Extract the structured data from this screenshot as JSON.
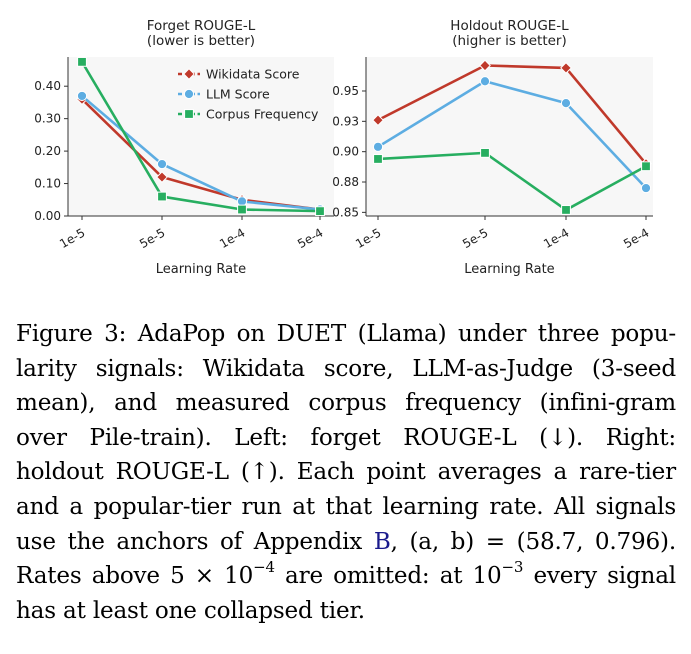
{
  "colors": {
    "wikidata": "#c0392b",
    "llm": "#5dade2",
    "corpus": "#27ae60",
    "panel_bg": "#f7f7f7"
  },
  "chart_data": [
    {
      "type": "line",
      "title": "Forget ROUGE-L",
      "subtitle": "(lower is better)",
      "xlabel": "Learning Rate",
      "ylabel": "",
      "categories": [
        "1e-5",
        "5e-5",
        "1e-4",
        "5e-4"
      ],
      "yticks": [
        "0.00",
        "0.10",
        "0.20",
        "0.30",
        "0.40"
      ],
      "ylim": [
        0.0,
        0.49
      ],
      "legend": "top-right",
      "grid": false,
      "series": [
        {
          "name": "Wikidata Score",
          "marker": "diamond",
          "values": [
            0.36,
            0.12,
            0.05,
            0.02
          ]
        },
        {
          "name": "LLM Score",
          "marker": "circle",
          "values": [
            0.37,
            0.16,
            0.045,
            0.02
          ]
        },
        {
          "name": "Corpus Frequency",
          "marker": "square",
          "values": [
            0.475,
            0.06,
            0.02,
            0.015
          ]
        }
      ]
    },
    {
      "type": "line",
      "title": "Holdout ROUGE-L",
      "subtitle": "(higher is better)",
      "xlabel": "Learning Rate",
      "ylabel": "",
      "categories": [
        "1e-5",
        "5e-5",
        "1e-4",
        "5e-4"
      ],
      "yticks": [
        "0.85",
        "0.88",
        "0.90",
        "0.93",
        "0.95"
      ],
      "ytick_values": [
        0.85,
        0.875,
        0.9,
        0.925,
        0.95
      ],
      "ylim": [
        0.847,
        0.978
      ],
      "legend": "none",
      "grid": false,
      "series": [
        {
          "name": "Wikidata Score",
          "marker": "diamond",
          "values": [
            0.926,
            0.971,
            0.969,
            0.89
          ]
        },
        {
          "name": "LLM Score",
          "marker": "circle",
          "values": [
            0.904,
            0.958,
            0.94,
            0.87
          ]
        },
        {
          "name": "Corpus Frequency",
          "marker": "square",
          "values": [
            0.894,
            0.899,
            0.852,
            0.888
          ]
        }
      ]
    }
  ],
  "caption": {
    "lines": [
      "Figure 3: AdaPop on DUET (Llama) under three popu-",
      "larity signals: Wikidata score, LLM-as-Judge (3-seed",
      "mean), and measured corpus frequency (infini-gram",
      "over Pile-train).  Left: forget ROUGE-L (↓).  Right:",
      "holdout ROUGE-L (↑). Each point averages a rare-tier",
      "and a popular-tier run at that learning rate. All signals"
    ],
    "line7_pre": "use the anchors of Appendix ",
    "line7_ref": "B",
    "line7_post": ", (a, b) = (58.7, 0.796).",
    "line8_pre": "Rates above 5 × 10",
    "line8_sup1": "−4",
    "line8_mid": " are omitted: at 10",
    "line8_sup2": "−3",
    "line8_post": " every signal",
    "line9": "has at least one collapsed tier."
  }
}
